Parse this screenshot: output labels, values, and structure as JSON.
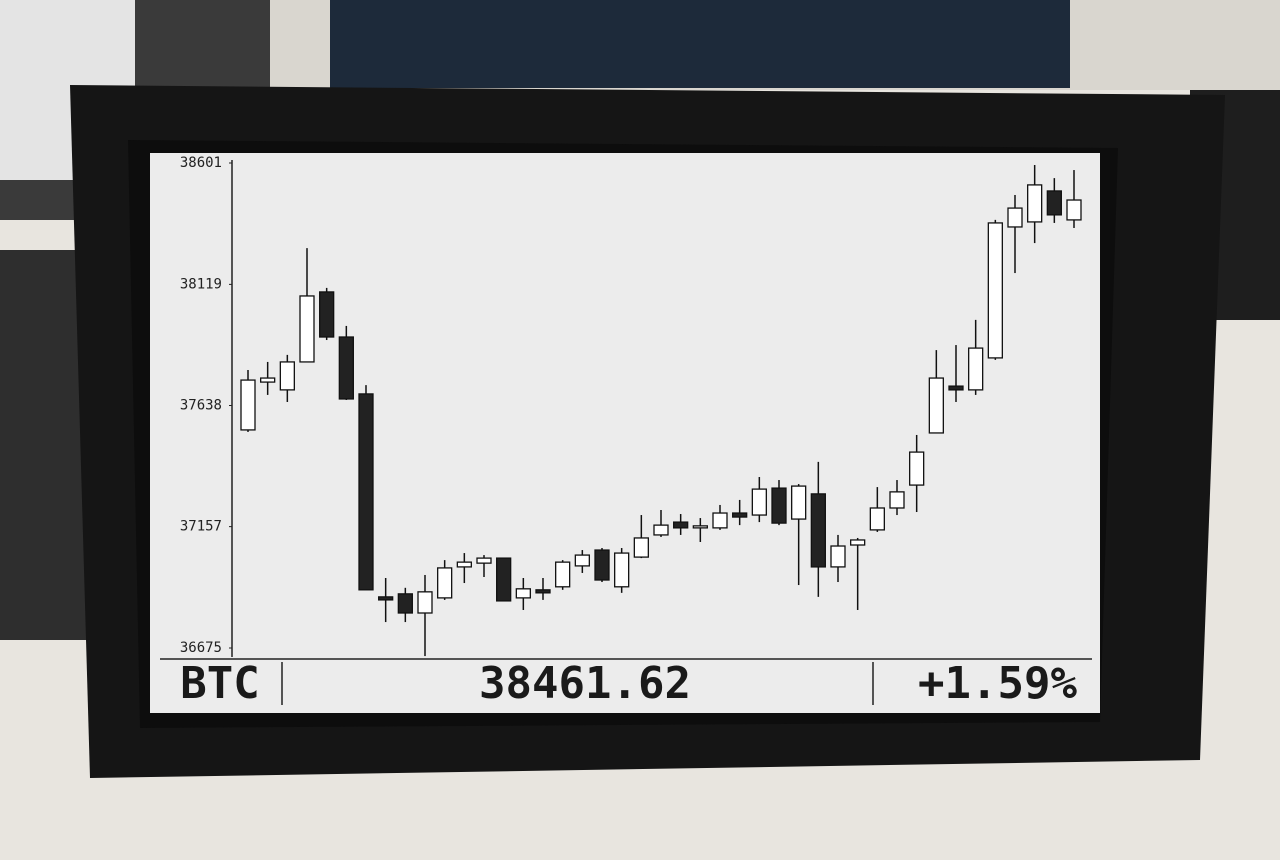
{
  "chart_data": {
    "type": "candlestick",
    "symbol": "BTC",
    "price": "38461.62",
    "change": "+1.59%",
    "ylim": [
      36675,
      38601
    ],
    "yticks": [
      36675,
      37157,
      37638,
      38119,
      38601
    ],
    "up_color": "#ffffff",
    "down_color": "#222222",
    "open": [
      37541,
      37731,
      37700,
      37811,
      38089,
      37910,
      37684,
      36878,
      36890,
      36814,
      36874,
      36997,
      37012,
      37032,
      36874,
      36906,
      36918,
      37001,
      37064,
      36918,
      37036,
      37124,
      37175,
      37152,
      37152,
      37211,
      37203,
      37310,
      37187,
      37287,
      36997,
      37084,
      37144,
      37231,
      37322,
      37529,
      37715,
      37700,
      37827,
      38347,
      38367,
      38490,
      38375
    ],
    "high": [
      37779,
      37811,
      37839,
      38263,
      38105,
      37954,
      37719,
      36953,
      36914,
      36965,
      37024,
      37052,
      37044,
      37032,
      36953,
      36953,
      37024,
      37064,
      37072,
      37072,
      37203,
      37223,
      37207,
      37191,
      37243,
      37263,
      37354,
      37342,
      37326,
      37414,
      37124,
      37112,
      37314,
      37342,
      37521,
      37858,
      37878,
      37978,
      38375,
      38474,
      38593,
      38541,
      38573
    ],
    "low": [
      37533,
      37680,
      37652,
      37811,
      37898,
      37660,
      36906,
      36778,
      36778,
      36643,
      36866,
      36933,
      36957,
      36862,
      36826,
      36866,
      36906,
      36973,
      36937,
      36894,
      37032,
      37116,
      37124,
      37096,
      37144,
      37163,
      37175,
      37163,
      36925,
      36878,
      36937,
      36826,
      37136,
      37203,
      37215,
      37529,
      37652,
      37680,
      37819,
      38164,
      38283,
      38363,
      38343
    ],
    "close": [
      37739,
      37747,
      37811,
      38073,
      37910,
      37664,
      36906,
      36866,
      36814,
      36898,
      36993,
      37016,
      37032,
      36862,
      36910,
      36894,
      37016,
      37044,
      36945,
      37052,
      37112,
      37163,
      37152,
      37160,
      37211,
      37195,
      37306,
      37171,
      37318,
      36997,
      37080,
      37104,
      37231,
      37295,
      37453,
      37747,
      37700,
      37866,
      38363,
      38422,
      38514,
      38395,
      38454
    ]
  }
}
